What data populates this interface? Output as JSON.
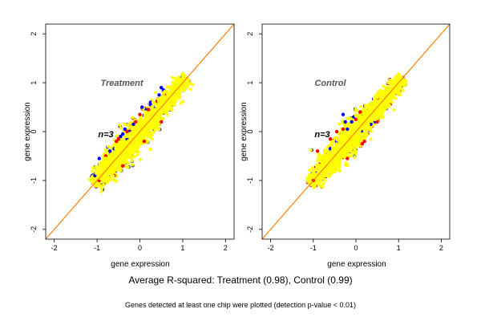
{
  "chart_data": [
    {
      "type": "scatter",
      "title": "Treatment",
      "annotation": "n=3",
      "xlabel": "gene expression",
      "ylabel": "gene expression",
      "xlim": [
        -2.2,
        2.2
      ],
      "ylim": [
        -2.2,
        2.2
      ],
      "xticks": [
        -2,
        -1,
        0,
        1,
        2
      ],
      "yticks": [
        -2,
        -1,
        0,
        1,
        2
      ],
      "diagonal": {
        "x": [
          -2.2,
          2.2
        ],
        "y": [
          -2.2,
          2.2
        ]
      },
      "series": [
        {
          "color": "#0000ff",
          "points": [
            [
              -0.45,
              -0.1
            ],
            [
              -0.35,
              0.05
            ],
            [
              -0.25,
              0.0
            ],
            [
              -0.3,
              -0.15
            ],
            [
              -0.6,
              -0.35
            ],
            [
              -0.7,
              -0.4
            ],
            [
              -0.95,
              -0.55
            ],
            [
              0.5,
              0.9
            ],
            [
              0.55,
              0.85
            ],
            [
              0.25,
              0.55
            ],
            [
              -0.15,
              0.15
            ],
            [
              0.05,
              0.5
            ],
            [
              0.25,
              0.6
            ],
            [
              0.15,
              0.45
            ],
            [
              -1.05,
              -0.9
            ],
            [
              -0.4,
              -0.05
            ],
            [
              0.35,
              0.5
            ],
            [
              0.45,
              0.75
            ]
          ]
        },
        {
          "color": "#ff0000",
          "points": [
            [
              -0.8,
              -0.5
            ],
            [
              -0.55,
              -0.2
            ],
            [
              -0.3,
              0.0
            ],
            [
              -0.1,
              0.2
            ],
            [
              0.2,
              0.45
            ],
            [
              0.4,
              0.62
            ],
            [
              0.6,
              0.78
            ],
            [
              -0.95,
              -1.0
            ],
            [
              -0.4,
              -0.7
            ],
            [
              0.1,
              -0.2
            ],
            [
              0.5,
              0.2
            ],
            [
              -0.6,
              -0.9
            ],
            [
              0.8,
              0.95
            ],
            [
              -0.2,
              0.05
            ],
            [
              0.0,
              0.35
            ],
            [
              -0.5,
              -0.15
            ]
          ]
        }
      ]
    },
    {
      "type": "scatter",
      "title": "Control",
      "annotation": "n=3",
      "xlabel": "gene expression",
      "ylabel": "gene expression",
      "xlim": [
        -2.2,
        2.2
      ],
      "ylim": [
        -2.2,
        2.2
      ],
      "xticks": [
        -2,
        -1,
        0,
        1,
        2
      ],
      "yticks": [
        -2,
        -1,
        0,
        1,
        2
      ],
      "diagonal": {
        "x": [
          -2.2,
          2.2
        ],
        "y": [
          -2.2,
          2.2
        ]
      },
      "series": [
        {
          "color": "#0000ff",
          "points": [
            [
              -0.3,
              0.35
            ],
            [
              -0.25,
              0.2
            ],
            [
              -0.2,
              0.05
            ],
            [
              -0.05,
              0.3
            ],
            [
              -0.1,
              0.2
            ],
            [
              0.15,
              0.0
            ],
            [
              0.35,
              0.15
            ],
            [
              0.45,
              0.2
            ],
            [
              -0.95,
              -0.85
            ],
            [
              -0.6,
              -0.35
            ],
            [
              -0.45,
              -0.2
            ],
            [
              0.6,
              0.7
            ]
          ]
        },
        {
          "color": "#ff0000",
          "points": [
            [
              -0.9,
              -0.4
            ],
            [
              -0.6,
              -0.15
            ],
            [
              -0.3,
              0.05
            ],
            [
              0.0,
              0.25
            ],
            [
              0.3,
              0.45
            ],
            [
              0.55,
              0.65
            ],
            [
              0.9,
              0.9
            ],
            [
              -1.0,
              -1.0
            ],
            [
              -0.2,
              -0.55
            ],
            [
              0.2,
              -0.2
            ],
            [
              0.5,
              0.2
            ],
            [
              0.8,
              0.55
            ],
            [
              -0.45,
              0.0
            ],
            [
              0.1,
              0.4
            ],
            [
              0.15,
              -0.25
            ]
          ]
        }
      ]
    }
  ],
  "caption": "Average R-squared: Treatment (0.98), Control (0.99)",
  "note": "Genes detected at least one chip were plotted (detection p-value < 0.01)"
}
